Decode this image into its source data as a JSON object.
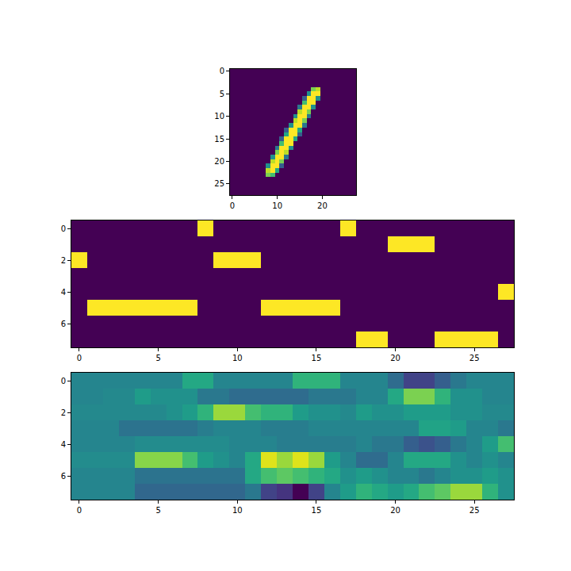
{
  "chart_data": [
    {
      "type": "heatmap",
      "color": "Viridis",
      "zlim": [
        0,
        1
      ],
      "xlim": [
        -0.5,
        27.5
      ],
      "ylim": [
        27.5,
        -0.5
      ],
      "xticks": [
        0,
        10,
        20
      ],
      "yticks": [
        0,
        5,
        10,
        15,
        20,
        25
      ],
      "cells": [
        [
          0,
          0,
          0,
          0,
          0,
          0,
          0,
          0,
          0,
          0,
          0,
          0,
          0,
          0,
          0,
          0,
          0,
          0,
          0,
          0,
          0,
          0,
          0,
          0,
          0,
          0,
          0,
          0
        ],
        [
          0,
          0,
          0,
          0,
          0,
          0,
          0,
          0,
          0,
          0,
          0,
          0,
          0,
          0,
          0,
          0,
          0,
          0,
          0,
          0,
          0,
          0,
          0,
          0,
          0,
          0,
          0,
          0
        ],
        [
          0,
          0,
          0,
          0,
          0,
          0,
          0,
          0,
          0,
          0,
          0,
          0,
          0,
          0,
          0,
          0,
          0,
          0,
          0,
          0,
          0,
          0,
          0,
          0,
          0,
          0,
          0,
          0
        ],
        [
          0,
          0,
          0,
          0,
          0,
          0,
          0,
          0,
          0,
          0,
          0,
          0,
          0,
          0,
          0,
          0,
          0,
          0,
          0,
          0,
          0,
          0,
          0,
          0,
          0,
          0,
          0,
          0
        ],
        [
          0,
          0,
          0,
          0,
          0,
          0,
          0,
          0,
          0,
          0,
          0,
          0,
          0,
          0,
          0,
          0,
          0,
          0,
          0.8,
          0.9,
          0,
          0,
          0,
          0,
          0,
          0,
          0,
          0
        ],
        [
          0,
          0,
          0,
          0,
          0,
          0,
          0,
          0,
          0,
          0,
          0,
          0,
          0,
          0,
          0,
          0,
          0,
          0.5,
          1,
          1,
          0,
          0,
          0,
          0,
          0,
          0,
          0,
          0
        ],
        [
          0,
          0,
          0,
          0,
          0,
          0,
          0,
          0,
          0,
          0,
          0,
          0,
          0,
          0,
          0,
          0,
          0.3,
          1,
          1,
          0.5,
          0,
          0,
          0,
          0,
          0,
          0,
          0,
          0
        ],
        [
          0,
          0,
          0,
          0,
          0,
          0,
          0,
          0,
          0,
          0,
          0,
          0,
          0,
          0,
          0,
          0,
          0.7,
          1,
          1,
          0,
          0,
          0,
          0,
          0,
          0,
          0,
          0,
          0
        ],
        [
          0,
          0,
          0,
          0,
          0,
          0,
          0,
          0,
          0,
          0,
          0,
          0,
          0,
          0,
          0,
          0.4,
          1,
          1,
          0.5,
          0,
          0,
          0,
          0,
          0,
          0,
          0,
          0,
          0
        ],
        [
          0,
          0,
          0,
          0,
          0,
          0,
          0,
          0,
          0,
          0,
          0,
          0,
          0,
          0,
          0,
          0.9,
          1,
          0.8,
          0,
          0,
          0,
          0,
          0,
          0,
          0,
          0,
          0,
          0
        ],
        [
          0,
          0,
          0,
          0,
          0,
          0,
          0,
          0,
          0,
          0,
          0,
          0,
          0,
          0,
          0.5,
          1,
          1,
          0.4,
          0,
          0,
          0,
          0,
          0,
          0,
          0,
          0,
          0,
          0
        ],
        [
          0,
          0,
          0,
          0,
          0,
          0,
          0,
          0,
          0,
          0,
          0,
          0,
          0,
          0,
          0.9,
          1,
          0.8,
          0,
          0,
          0,
          0,
          0,
          0,
          0,
          0,
          0,
          0,
          0
        ],
        [
          0,
          0,
          0,
          0,
          0,
          0,
          0,
          0,
          0,
          0,
          0,
          0,
          0,
          0.5,
          1,
          1,
          0.4,
          0,
          0,
          0,
          0,
          0,
          0,
          0,
          0,
          0,
          0,
          0
        ],
        [
          0,
          0,
          0,
          0,
          0,
          0,
          0,
          0,
          0,
          0,
          0,
          0,
          0.3,
          1,
          1,
          0.6,
          0,
          0,
          0,
          0,
          0,
          0,
          0,
          0,
          0,
          0,
          0,
          0
        ],
        [
          0,
          0,
          0,
          0,
          0,
          0,
          0,
          0,
          0,
          0,
          0,
          0,
          0.6,
          1,
          1,
          0.3,
          0,
          0,
          0,
          0,
          0,
          0,
          0,
          0,
          0,
          0,
          0,
          0
        ],
        [
          0,
          0,
          0,
          0,
          0,
          0,
          0,
          0,
          0,
          0,
          0,
          0.3,
          1,
          1,
          0.6,
          0,
          0,
          0,
          0,
          0,
          0,
          0,
          0,
          0,
          0,
          0,
          0,
          0
        ],
        [
          0,
          0,
          0,
          0,
          0,
          0,
          0,
          0,
          0,
          0,
          0,
          0.7,
          1,
          1,
          0,
          0,
          0,
          0,
          0,
          0,
          0,
          0,
          0,
          0,
          0,
          0,
          0,
          0
        ],
        [
          0,
          0,
          0,
          0,
          0,
          0,
          0,
          0,
          0,
          0,
          0.4,
          1,
          1,
          0.5,
          0,
          0,
          0,
          0,
          0,
          0,
          0,
          0,
          0,
          0,
          0,
          0,
          0,
          0
        ],
        [
          0,
          0,
          0,
          0,
          0,
          0,
          0,
          0,
          0,
          0,
          0.8,
          1,
          0.9,
          0,
          0,
          0,
          0,
          0,
          0,
          0,
          0,
          0,
          0,
          0,
          0,
          0,
          0,
          0
        ],
        [
          0,
          0,
          0,
          0,
          0,
          0,
          0,
          0,
          0,
          0.5,
          1,
          1,
          0.4,
          0,
          0,
          0,
          0,
          0,
          0,
          0,
          0,
          0,
          0,
          0,
          0,
          0,
          0,
          0
        ],
        [
          0,
          0,
          0,
          0,
          0,
          0,
          0,
          0,
          0,
          0.9,
          1,
          0.8,
          0,
          0,
          0,
          0,
          0,
          0,
          0,
          0,
          0,
          0,
          0,
          0,
          0,
          0,
          0,
          0
        ],
        [
          0,
          0,
          0,
          0,
          0,
          0,
          0,
          0,
          0.5,
          1,
          1,
          0.3,
          0,
          0,
          0,
          0,
          0,
          0,
          0,
          0,
          0,
          0,
          0,
          0,
          0,
          0,
          0,
          0
        ],
        [
          0,
          0,
          0,
          0,
          0,
          0,
          0,
          0,
          0.9,
          1,
          0.6,
          0,
          0,
          0,
          0,
          0,
          0,
          0,
          0,
          0,
          0,
          0,
          0,
          0,
          0,
          0,
          0,
          0
        ],
        [
          0,
          0,
          0,
          0,
          0,
          0,
          0,
          0,
          0.8,
          0.7,
          0,
          0,
          0,
          0,
          0,
          0,
          0,
          0,
          0,
          0,
          0,
          0,
          0,
          0,
          0,
          0,
          0,
          0
        ],
        [
          0,
          0,
          0,
          0,
          0,
          0,
          0,
          0,
          0,
          0,
          0,
          0,
          0,
          0,
          0,
          0,
          0,
          0,
          0,
          0,
          0,
          0,
          0,
          0,
          0,
          0,
          0,
          0
        ],
        [
          0,
          0,
          0,
          0,
          0,
          0,
          0,
          0,
          0,
          0,
          0,
          0,
          0,
          0,
          0,
          0,
          0,
          0,
          0,
          0,
          0,
          0,
          0,
          0,
          0,
          0,
          0,
          0
        ],
        [
          0,
          0,
          0,
          0,
          0,
          0,
          0,
          0,
          0,
          0,
          0,
          0,
          0,
          0,
          0,
          0,
          0,
          0,
          0,
          0,
          0,
          0,
          0,
          0,
          0,
          0,
          0,
          0
        ],
        [
          0,
          0,
          0,
          0,
          0,
          0,
          0,
          0,
          0,
          0,
          0,
          0,
          0,
          0,
          0,
          0,
          0,
          0,
          0,
          0,
          0,
          0,
          0,
          0,
          0,
          0,
          0,
          0
        ]
      ]
    },
    {
      "type": "heatmap",
      "color": "Viridis",
      "zlim": [
        0,
        1
      ],
      "xlim": [
        -0.5,
        27.5
      ],
      "ylim": [
        7.5,
        -0.5
      ],
      "xticks": [
        0,
        5,
        10,
        15,
        20,
        25
      ],
      "yticks": [
        0,
        2,
        4,
        6
      ],
      "cells": [
        [
          0,
          0,
          0,
          0,
          0,
          0,
          0,
          0,
          1,
          0,
          0,
          0,
          0,
          0,
          0,
          0,
          0,
          1,
          0,
          0,
          0,
          0,
          0,
          0,
          0,
          0,
          0,
          0
        ],
        [
          0,
          0,
          0,
          0,
          0,
          0,
          0,
          0,
          0,
          0,
          0,
          0,
          0,
          0,
          0,
          0,
          0,
          0,
          0,
          0,
          1,
          1,
          1,
          0,
          0,
          0,
          0,
          0
        ],
        [
          1,
          0,
          0,
          0,
          0,
          0,
          0,
          0,
          0,
          1,
          1,
          1,
          0,
          0,
          0,
          0,
          0,
          0,
          0,
          0,
          0,
          0,
          0,
          0,
          0,
          0,
          0,
          0
        ],
        [
          0,
          0,
          0,
          0,
          0,
          0,
          0,
          0,
          0,
          0,
          0,
          0,
          0,
          0,
          0,
          0,
          0,
          0,
          0,
          0,
          0,
          0,
          0,
          0,
          0,
          0,
          0,
          0
        ],
        [
          0,
          0,
          0,
          0,
          0,
          0,
          0,
          0,
          0,
          0,
          0,
          0,
          0,
          0,
          0,
          0,
          0,
          0,
          0,
          0,
          0,
          0,
          0,
          0,
          0,
          0,
          0,
          1
        ],
        [
          0,
          1,
          1,
          1,
          1,
          1,
          1,
          1,
          0,
          0,
          0,
          0,
          1,
          1,
          1,
          1,
          1,
          0,
          0,
          0,
          0,
          0,
          0,
          0,
          0,
          0,
          0,
          0
        ],
        [
          0,
          0,
          0,
          0,
          0,
          0,
          0,
          0,
          0,
          0,
          0,
          0,
          0,
          0,
          0,
          0,
          0,
          0,
          0,
          0,
          0,
          0,
          0,
          0,
          0,
          0,
          0,
          0
        ],
        [
          0,
          0,
          0,
          0,
          0,
          0,
          0,
          0,
          0,
          0,
          0,
          0,
          0,
          0,
          0,
          0,
          0,
          0,
          1,
          1,
          0,
          0,
          0,
          1,
          1,
          1,
          1,
          0
        ]
      ]
    },
    {
      "type": "heatmap",
      "color": "Viridis",
      "zlim": [
        0,
        1
      ],
      "xlim": [
        -0.5,
        27.5
      ],
      "ylim": [
        7.5,
        -0.5
      ],
      "xticks": [
        0,
        5,
        10,
        15,
        20,
        25
      ],
      "yticks": [
        0,
        2,
        4,
        6
      ],
      "cells": [
        [
          0.45,
          0.45,
          0.45,
          0.45,
          0.45,
          0.45,
          0.45,
          0.6,
          0.6,
          0.45,
          0.45,
          0.45,
          0.45,
          0.45,
          0.65,
          0.65,
          0.65,
          0.45,
          0.45,
          0.45,
          0.35,
          0.2,
          0.2,
          0.3,
          0.4,
          0.45,
          0.45,
          0.45
        ],
        [
          0.45,
          0.45,
          0.47,
          0.47,
          0.55,
          0.5,
          0.5,
          0.5,
          0.4,
          0.4,
          0.35,
          0.35,
          0.35,
          0.35,
          0.35,
          0.4,
          0.4,
          0.4,
          0.45,
          0.45,
          0.6,
          0.8,
          0.8,
          0.65,
          0.5,
          0.5,
          0.45,
          0.45
        ],
        [
          0.47,
          0.47,
          0.47,
          0.47,
          0.47,
          0.47,
          0.5,
          0.55,
          0.65,
          0.85,
          0.85,
          0.7,
          0.65,
          0.65,
          0.55,
          0.5,
          0.5,
          0.47,
          0.55,
          0.5,
          0.5,
          0.55,
          0.55,
          0.55,
          0.5,
          0.5,
          0.47,
          0.47
        ],
        [
          0.45,
          0.45,
          0.45,
          0.38,
          0.38,
          0.38,
          0.38,
          0.38,
          0.42,
          0.45,
          0.45,
          0.45,
          0.42,
          0.42,
          0.42,
          0.45,
          0.45,
          0.45,
          0.45,
          0.45,
          0.45,
          0.45,
          0.58,
          0.58,
          0.55,
          0.45,
          0.45,
          0.4
        ],
        [
          0.45,
          0.45,
          0.45,
          0.45,
          0.48,
          0.48,
          0.48,
          0.48,
          0.48,
          0.48,
          0.45,
          0.45,
          0.45,
          0.42,
          0.42,
          0.42,
          0.42,
          0.42,
          0.45,
          0.4,
          0.4,
          0.3,
          0.25,
          0.3,
          0.4,
          0.45,
          0.55,
          0.7
        ],
        [
          0.48,
          0.48,
          0.48,
          0.48,
          0.82,
          0.82,
          0.82,
          0.7,
          0.55,
          0.5,
          0.45,
          0.6,
          0.95,
          0.85,
          0.95,
          0.85,
          0.55,
          0.45,
          0.35,
          0.35,
          0.45,
          0.6,
          0.6,
          0.6,
          0.5,
          0.45,
          0.5,
          0.45
        ],
        [
          0.45,
          0.45,
          0.45,
          0.45,
          0.38,
          0.38,
          0.38,
          0.38,
          0.38,
          0.38,
          0.38,
          0.6,
          0.7,
          0.75,
          0.7,
          0.65,
          0.6,
          0.5,
          0.55,
          0.5,
          0.45,
          0.45,
          0.4,
          0.45,
          0.5,
          0.5,
          0.55,
          0.5
        ],
        [
          0.45,
          0.45,
          0.45,
          0.45,
          0.33,
          0.33,
          0.33,
          0.33,
          0.33,
          0.33,
          0.33,
          0.4,
          0.2,
          0.15,
          0,
          0.2,
          0.45,
          0.55,
          0.65,
          0.6,
          0.55,
          0.6,
          0.7,
          0.75,
          0.85,
          0.85,
          0.65,
          0.5
        ]
      ]
    }
  ]
}
